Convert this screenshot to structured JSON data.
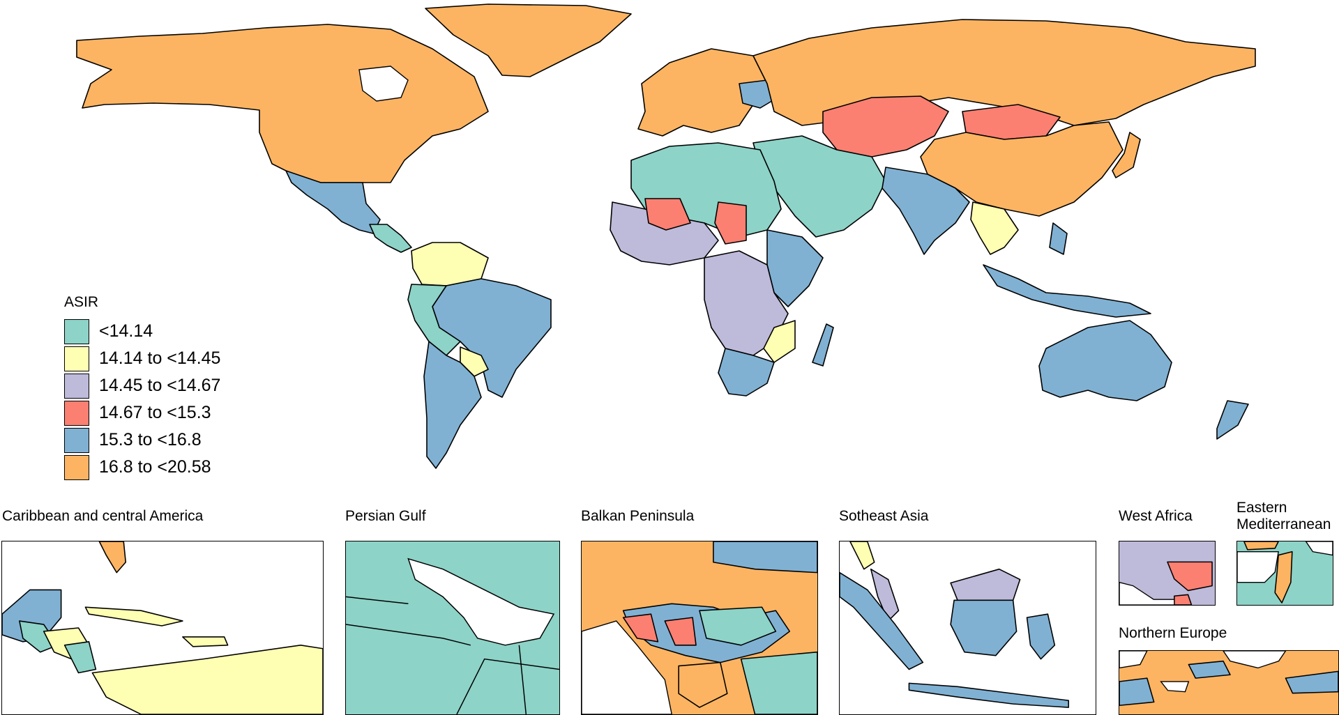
{
  "colors": {
    "c1": "#8dd3c7",
    "c2": "#ffffb3",
    "c3": "#bebada",
    "c4": "#fb8072",
    "c5": "#80b1d3",
    "c6": "#fdb462"
  },
  "legend": {
    "title": "ASIR",
    "items": [
      {
        "label": "<14.14",
        "color": "#8dd3c7"
      },
      {
        "label": "14.14 to <14.45",
        "color": "#ffffb3"
      },
      {
        "label": "14.45 to <14.67",
        "color": "#bebada"
      },
      {
        "label": "14.67 to <15.3",
        "color": "#fb8072"
      },
      {
        "label": "15.3 to <16.8",
        "color": "#80b1d3"
      },
      {
        "label": "16.8 to <20.58",
        "color": "#fdb462"
      }
    ]
  },
  "insets": [
    {
      "title": "Caribbean and central America"
    },
    {
      "title": "Persian Gulf"
    },
    {
      "title": "Balkan Peninsula"
    },
    {
      "title": "Sotheast Asia"
    },
    {
      "title": "West Africa"
    },
    {
      "title": "Eastern\nMediterranean"
    },
    {
      "title": "Northern Europe"
    }
  ]
}
